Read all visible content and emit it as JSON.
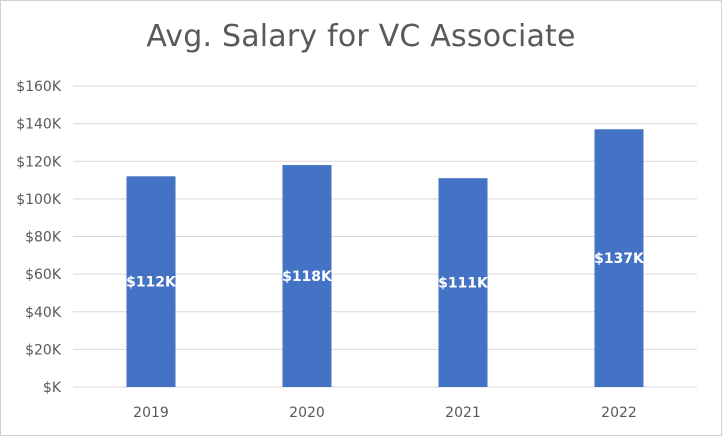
{
  "chart_data": {
    "type": "bar",
    "title": "Avg. Salary for VC Associate",
    "xlabel": "",
    "ylabel": "",
    "categories": [
      "2019",
      "2020",
      "2021",
      "2022"
    ],
    "values": [
      112,
      118,
      111,
      137
    ],
    "data_labels": [
      "$112K",
      "$118K",
      "$111K",
      "$137K"
    ],
    "ylim": [
      0,
      160
    ],
    "yticks": [
      0,
      20,
      40,
      60,
      80,
      100,
      120,
      140,
      160
    ],
    "ytick_labels": [
      "$K",
      "$20K",
      "$40K",
      "$60K",
      "$80K",
      "$100K",
      "$120K",
      "$140K",
      "$160K"
    ],
    "grid": true,
    "legend": "none",
    "bar_color": "#4472C4",
    "grid_color": "#d9d9d9"
  }
}
